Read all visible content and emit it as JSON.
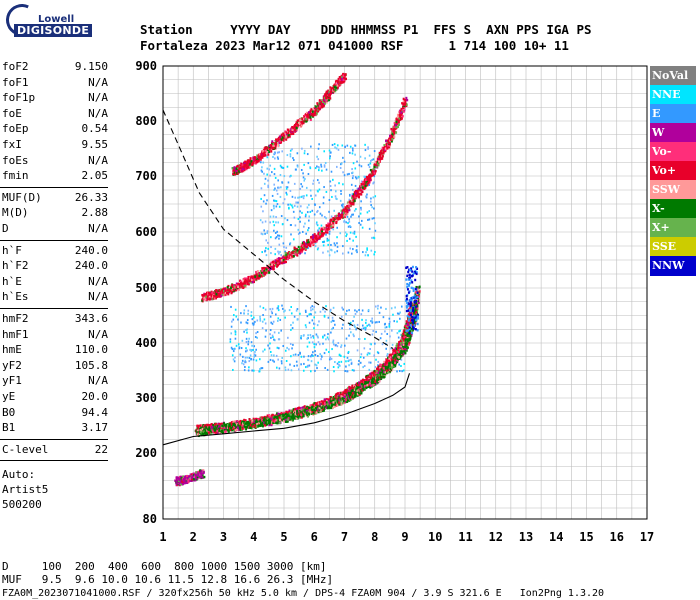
{
  "logo": {
    "top_text": "Lowell",
    "bottom_text": "DIGISONDE"
  },
  "header": {
    "line1": "Station     YYYY DAY    DDD HHMMSS P1  FFS S  AXN PPS IGA PS",
    "line2": "Fortaleza 2023 Mar12 071 041000 RSF      1 714 100 10+ 11"
  },
  "params_group1": [
    {
      "k": "foF2",
      "v": "9.150"
    },
    {
      "k": "foF1",
      "v": "N/A"
    },
    {
      "k": "foF1p",
      "v": "N/A"
    },
    {
      "k": "foE",
      "v": "N/A"
    },
    {
      "k": "foEp",
      "v": "0.54"
    },
    {
      "k": "fxI",
      "v": "9.55"
    },
    {
      "k": "foEs",
      "v": "N/A"
    },
    {
      "k": "fmin",
      "v": "2.05"
    }
  ],
  "params_group2": [
    {
      "k": "MUF(D)",
      "v": "26.33"
    },
    {
      "k": "M(D)",
      "v": "2.88"
    },
    {
      "k": "D",
      "v": "N/A"
    }
  ],
  "params_group3": [
    {
      "k": "h`F",
      "v": "240.0"
    },
    {
      "k": "h`F2",
      "v": "240.0"
    },
    {
      "k": "h`E",
      "v": "N/A"
    },
    {
      "k": "h`Es",
      "v": "N/A"
    }
  ],
  "params_group4": [
    {
      "k": "hmF2",
      "v": "343.6"
    },
    {
      "k": "hmF1",
      "v": "N/A"
    },
    {
      "k": "hmE",
      "v": "110.0"
    },
    {
      "k": "yF2",
      "v": "105.8"
    },
    {
      "k": "yF1",
      "v": "N/A"
    },
    {
      "k": "yE",
      "v": "20.0"
    },
    {
      "k": "B0",
      "v": "94.4"
    },
    {
      "k": "B1",
      "v": "3.17"
    }
  ],
  "params_group5": [
    {
      "k": "C-level",
      "v": "22"
    }
  ],
  "auto": {
    "l1": "Auto:",
    "l2": "Artist5",
    "l3": "500200"
  },
  "legend": [
    {
      "label": "NoVal",
      "color": "#808080"
    },
    {
      "label": "NNE",
      "color": "#00e5ff"
    },
    {
      "label": "E",
      "color": "#3399ff"
    },
    {
      "label": "W",
      "color": "#b0009c"
    },
    {
      "label": "Vo-",
      "color": "#ff2e7a"
    },
    {
      "label": "Vo+",
      "color": "#e8002a"
    },
    {
      "label": "SSW",
      "color": "#ff9999"
    },
    {
      "label": "X-",
      "color": "#007a00"
    },
    {
      "label": "X+",
      "color": "#66b34d"
    },
    {
      "label": "SSE",
      "color": "#cccc00"
    },
    {
      "label": "NNW",
      "color": "#0000cc"
    }
  ],
  "bottom": {
    "d_line": "D     100  200  400  600  800 1000 1500 3000 [km]",
    "muf_line": "MUF   9.5  9.6 10.0 10.6 11.5 12.8 16.6 26.3 [MHz]",
    "file_line": "FZA0M_2023071041000.RSF / 320fx256h 50 kHz 5.0 km / DPS-4 FZA0M 904 / 3.9 S 321.6 E   Ion2Png 1.3.20"
  },
  "chart_data": {
    "type": "scatter",
    "title": "",
    "xlabel": "",
    "ylabel": "",
    "xlim": [
      1,
      17
    ],
    "ylim": [
      80,
      900
    ],
    "x_ticks": [
      1,
      2,
      3,
      4,
      5,
      6,
      7,
      8,
      9,
      10,
      11,
      12,
      13,
      14,
      15,
      16,
      17
    ],
    "y_ticks": [
      80,
      200,
      300,
      400,
      500,
      600,
      700,
      800,
      900
    ],
    "grid": true,
    "traces": [
      {
        "name": "O-trace F2",
        "color": "#e8002a",
        "points": [
          [
            2.1,
            245
          ],
          [
            3,
            250
          ],
          [
            4,
            258
          ],
          [
            5,
            270
          ],
          [
            6,
            285
          ],
          [
            7,
            310
          ],
          [
            7.5,
            325
          ],
          [
            8,
            345
          ],
          [
            8.5,
            372
          ],
          [
            8.9,
            405
          ],
          [
            9.1,
            440
          ],
          [
            9.2,
            470
          ]
        ]
      },
      {
        "name": "X-trace F2",
        "color": "#007a00",
        "points": [
          [
            2.1,
            240
          ],
          [
            3,
            246
          ],
          [
            4,
            255
          ],
          [
            5,
            265
          ],
          [
            6,
            280
          ],
          [
            7,
            300
          ],
          [
            7.5,
            318
          ],
          [
            8,
            335
          ],
          [
            8.5,
            360
          ],
          [
            9,
            395
          ],
          [
            9.3,
            450
          ],
          [
            9.4,
            500
          ]
        ]
      },
      {
        "name": "2-hop",
        "color": "#e8002a",
        "points": [
          [
            2.3,
            485
          ],
          [
            3,
            495
          ],
          [
            4,
            520
          ],
          [
            5,
            555
          ],
          [
            6,
            590
          ],
          [
            7,
            640
          ],
          [
            7.8,
            700
          ],
          [
            8.5,
            770
          ],
          [
            9.0,
            840
          ]
        ]
      },
      {
        "name": "3-hop",
        "color": "#e8002a",
        "points": [
          [
            3.3,
            710
          ],
          [
            4,
            730
          ],
          [
            5,
            775
          ],
          [
            6,
            820
          ],
          [
            6.6,
            860
          ],
          [
            7,
            885
          ]
        ]
      },
      {
        "name": "Es low",
        "color": "#b0009c",
        "points": [
          [
            1.4,
            150
          ],
          [
            1.8,
            155
          ],
          [
            2.3,
            165
          ]
        ]
      }
    ],
    "oblique_cloud_ranges": [
      {
        "name": "E cloud 1",
        "x": [
          3.2,
          9
        ],
        "y": [
          350,
          470
        ]
      },
      {
        "name": "E cloud 2",
        "x": [
          4.2,
          8
        ],
        "y": [
          560,
          760
        ]
      }
    ],
    "profile_lines": [
      {
        "name": "dashed profile",
        "style": "dashed",
        "points": [
          [
            1,
            820
          ],
          [
            1.6,
            745
          ],
          [
            2.2,
            670
          ],
          [
            3,
            605
          ],
          [
            4,
            560
          ],
          [
            5,
            515
          ],
          [
            6,
            475
          ],
          [
            7,
            440
          ],
          [
            8,
            410
          ],
          [
            8.6,
            390
          ]
        ]
      },
      {
        "name": "solid profile",
        "style": "solid",
        "points": [
          [
            1,
            215
          ],
          [
            2,
            230
          ],
          [
            3,
            235
          ],
          [
            4,
            240
          ],
          [
            5,
            245
          ],
          [
            6,
            255
          ],
          [
            7,
            270
          ],
          [
            8,
            290
          ],
          [
            8.6,
            305
          ],
          [
            9.0,
            320
          ],
          [
            9.15,
            345
          ]
        ]
      }
    ]
  }
}
